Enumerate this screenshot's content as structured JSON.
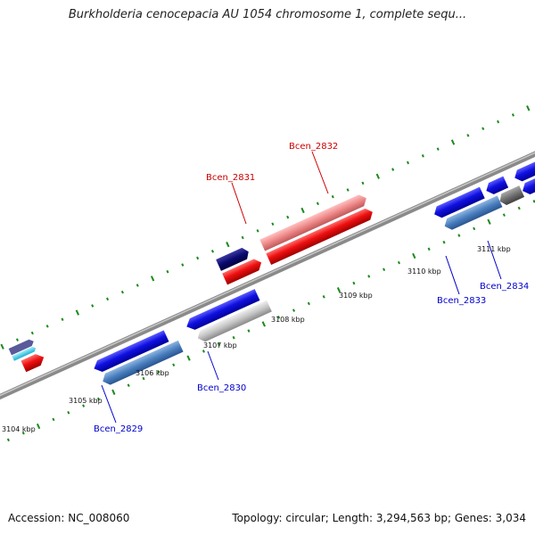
{
  "title": "Burkholderia cenocepacia AU 1054 chromosome 1, complete sequ...",
  "footer": {
    "accession": "Accession: NC_008060",
    "summary": "Topology: circular; Length: 3,294,563 bp; Genes: 3,034"
  },
  "scale_labels": [
    "3104 kbp",
    "3105 kbp",
    "3106 kbp",
    "3107 kbp",
    "3108 kbp",
    "3109 kbp",
    "3110 kbp",
    "3111 kbp"
  ],
  "gene_labels": [
    {
      "text": "Bcen_2829",
      "strand": "minus"
    },
    {
      "text": "Bcen_2830",
      "strand": "minus"
    },
    {
      "text": "Bcen_2831",
      "strand": "plus"
    },
    {
      "text": "Bcen_2832",
      "strand": "plus"
    },
    {
      "text": "Bcen_2833",
      "strand": "minus"
    },
    {
      "text": "Bcen_2834",
      "strand": "minus"
    }
  ],
  "colors": {
    "plus_label": "#cc0000",
    "minus_label": "#0000cc",
    "backbone": "#8a8a8a",
    "tick": "#1a8a1a",
    "gene_blue": "#1010e0",
    "gene_steel": "#4a7fbf",
    "gene_red": "#ee1010",
    "gene_pink": "#ee8888",
    "gene_navy": "#0a0a70",
    "gene_silver": "#c4c4c4",
    "gene_gray": "#707070"
  }
}
